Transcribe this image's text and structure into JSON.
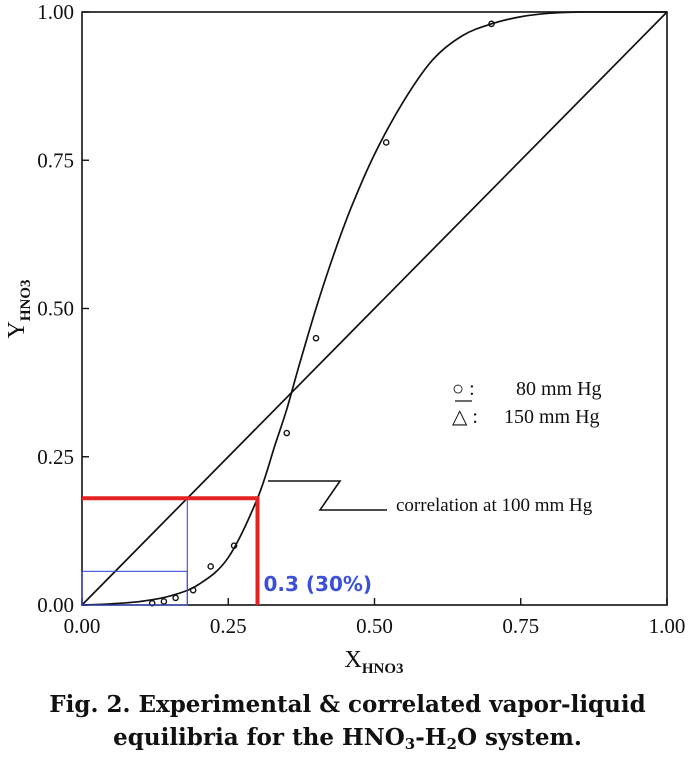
{
  "chart_data": {
    "type": "line",
    "xlabel": "X",
    "xlabel_sub": "HNO3",
    "ylabel": "Y",
    "ylabel_sub": "HNO3",
    "xlim": [
      0,
      1
    ],
    "ylim": [
      0,
      1
    ],
    "x_ticks": [
      "0.00",
      "0.25",
      "0.50",
      "0.75",
      "1.00"
    ],
    "y_ticks": [
      "0.00",
      "0.25",
      "0.50",
      "0.75",
      "1.00"
    ],
    "grid": false,
    "legend": {
      "position": "right",
      "items": [
        {
          "marker": "○ :",
          "label": "80 mm Hg"
        },
        {
          "marker": "△ :",
          "label": "150 mm Hg"
        }
      ]
    },
    "series": [
      {
        "name": "correlation at 100 mm Hg",
        "type": "line",
        "x": [
          0.0,
          0.05,
          0.1,
          0.15,
          0.2,
          0.25,
          0.3,
          0.33,
          0.35,
          0.37,
          0.4,
          0.43,
          0.46,
          0.5,
          0.55,
          0.6,
          0.65,
          0.7,
          0.75,
          0.8,
          0.85,
          0.9,
          0.95,
          1.0
        ],
        "y": [
          0.0,
          0.002,
          0.006,
          0.015,
          0.035,
          0.08,
          0.18,
          0.27,
          0.33,
          0.4,
          0.5,
          0.59,
          0.67,
          0.76,
          0.85,
          0.92,
          0.96,
          0.98,
          0.992,
          0.998,
          1.0,
          1.0,
          1.0,
          1.0
        ]
      },
      {
        "type": "line",
        "x": [
          0,
          1
        ],
        "y": [
          0,
          1
        ]
      },
      {
        "type": "scatter",
        "x": [
          0.12,
          0.14,
          0.16,
          0.19,
          0.22,
          0.26,
          0.35,
          0.4,
          0.52,
          0.7
        ],
        "y": [
          0.003,
          0.006,
          0.012,
          0.025,
          0.065,
          0.1,
          0.29,
          0.45,
          0.78,
          0.98
        ]
      }
    ],
    "annotations": {
      "correlation_label": "correlation at 100 mm Hg",
      "highlight_label": "0.3 (30%)",
      "highlight_x": 0.3,
      "highlight_y": 0.18,
      "mccabe_steps": [
        0.18,
        0.05
      ]
    }
  },
  "caption": {
    "line1": "Fig. 2. Experimental & correlated vapor-liquid",
    "line2_prefix": "equilibria for the HNO",
    "line2_sub1": "3",
    "line2_mid": "-H",
    "line2_sub2": "2",
    "line2_suffix": "O system."
  },
  "colors": {
    "highlight": "#e32222",
    "steps": "#3b4fd8",
    "label": "#3b4fd8",
    "ink": "#111111"
  }
}
